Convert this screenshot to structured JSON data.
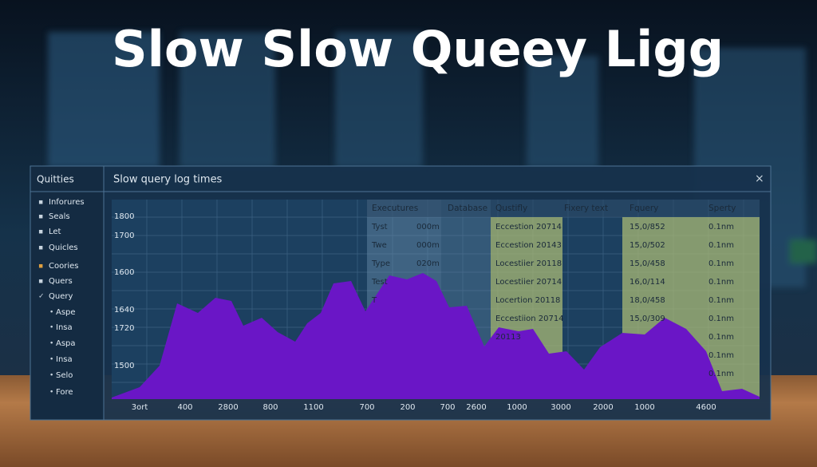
{
  "header": {
    "title": "Slow Slow Queey Ligg"
  },
  "sidebar": {
    "title": "Quitties",
    "items": [
      "Inforures",
      "Seals",
      "Let",
      "Quicles",
      "Coories",
      "Quers",
      "Query",
      "Aspe",
      "Insa",
      "Aspa",
      "Insa",
      "Selo",
      "Fore"
    ]
  },
  "panel": {
    "title": "Slow query log times",
    "close": "×",
    "y_labels": [
      "1800",
      "1700",
      "1600",
      "1640",
      "1720",
      "1500"
    ],
    "x_labels": [
      "3ort",
      "400",
      "2800",
      "800",
      "1100",
      "700",
      "200",
      "700",
      "2600",
      "1000",
      "3000",
      "2000",
      "1000",
      "4600"
    ]
  },
  "table": {
    "columns": [
      "Executures",
      "Database",
      "Qustifly",
      "Fixery text",
      "Fquery",
      "Sperty"
    ],
    "rows": [
      {
        "c0": "Tyst",
        "c1": "000m",
        "c2": "Eccestion 20714",
        "c4": "15,0/852",
        "c5": "0.1nm"
      },
      {
        "c0": "Twe",
        "c1": "000m",
        "c2": "Eccestion 20143",
        "c4": "15,0/502",
        "c5": "0.1nm"
      },
      {
        "c0": "Type",
        "c1": "020m",
        "c2": "Locestiier 20118",
        "c4": "15,0/458",
        "c5": "0.1nm"
      },
      {
        "c0": "Test",
        "c2": "Locestiier 20714",
        "c4": "16,0/114",
        "c5": "0.1nm"
      },
      {
        "c0": "T",
        "c2": "Locertion 20118",
        "c4": "18,0/458",
        "c5": "0.1nm"
      },
      {
        "c2": "Eccestiion 20714",
        "c4": "15,0/309",
        "c5": "0.1nm"
      },
      {
        "c2": "20113",
        "c5": "0.1nm"
      },
      {
        "c5": "0.1nm"
      },
      {
        "c5": "0.1nm"
      }
    ]
  }
}
